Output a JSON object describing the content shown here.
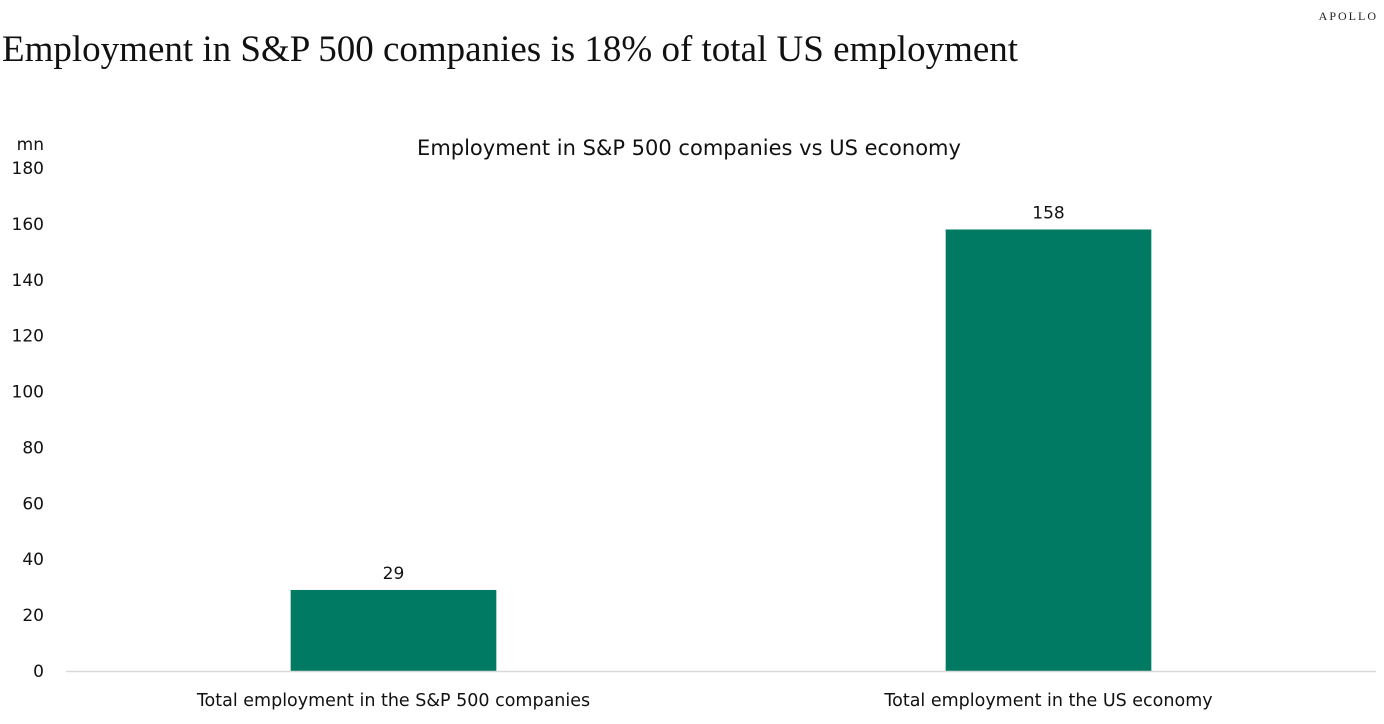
{
  "brand": "APOLLO",
  "headline": "Employment in S&P 500 companies is 18% of total US employment",
  "colors": {
    "bar": "#007a63",
    "axis": "#d9d9d9",
    "text": "#111111"
  },
  "chart_data": {
    "type": "bar",
    "title": "Employment in S&P 500 companies vs US economy",
    "ylabel": "mn",
    "xlabel": "",
    "categories": [
      "Total employment in the S&P 500 companies",
      "Total employment in the US economy"
    ],
    "values": [
      29,
      158
    ],
    "data_labels": [
      "29",
      "158"
    ],
    "ylim": [
      0,
      180
    ],
    "yticks": [
      0,
      20,
      40,
      60,
      80,
      100,
      120,
      140,
      160,
      180
    ],
    "grid": false,
    "legend": "none"
  }
}
